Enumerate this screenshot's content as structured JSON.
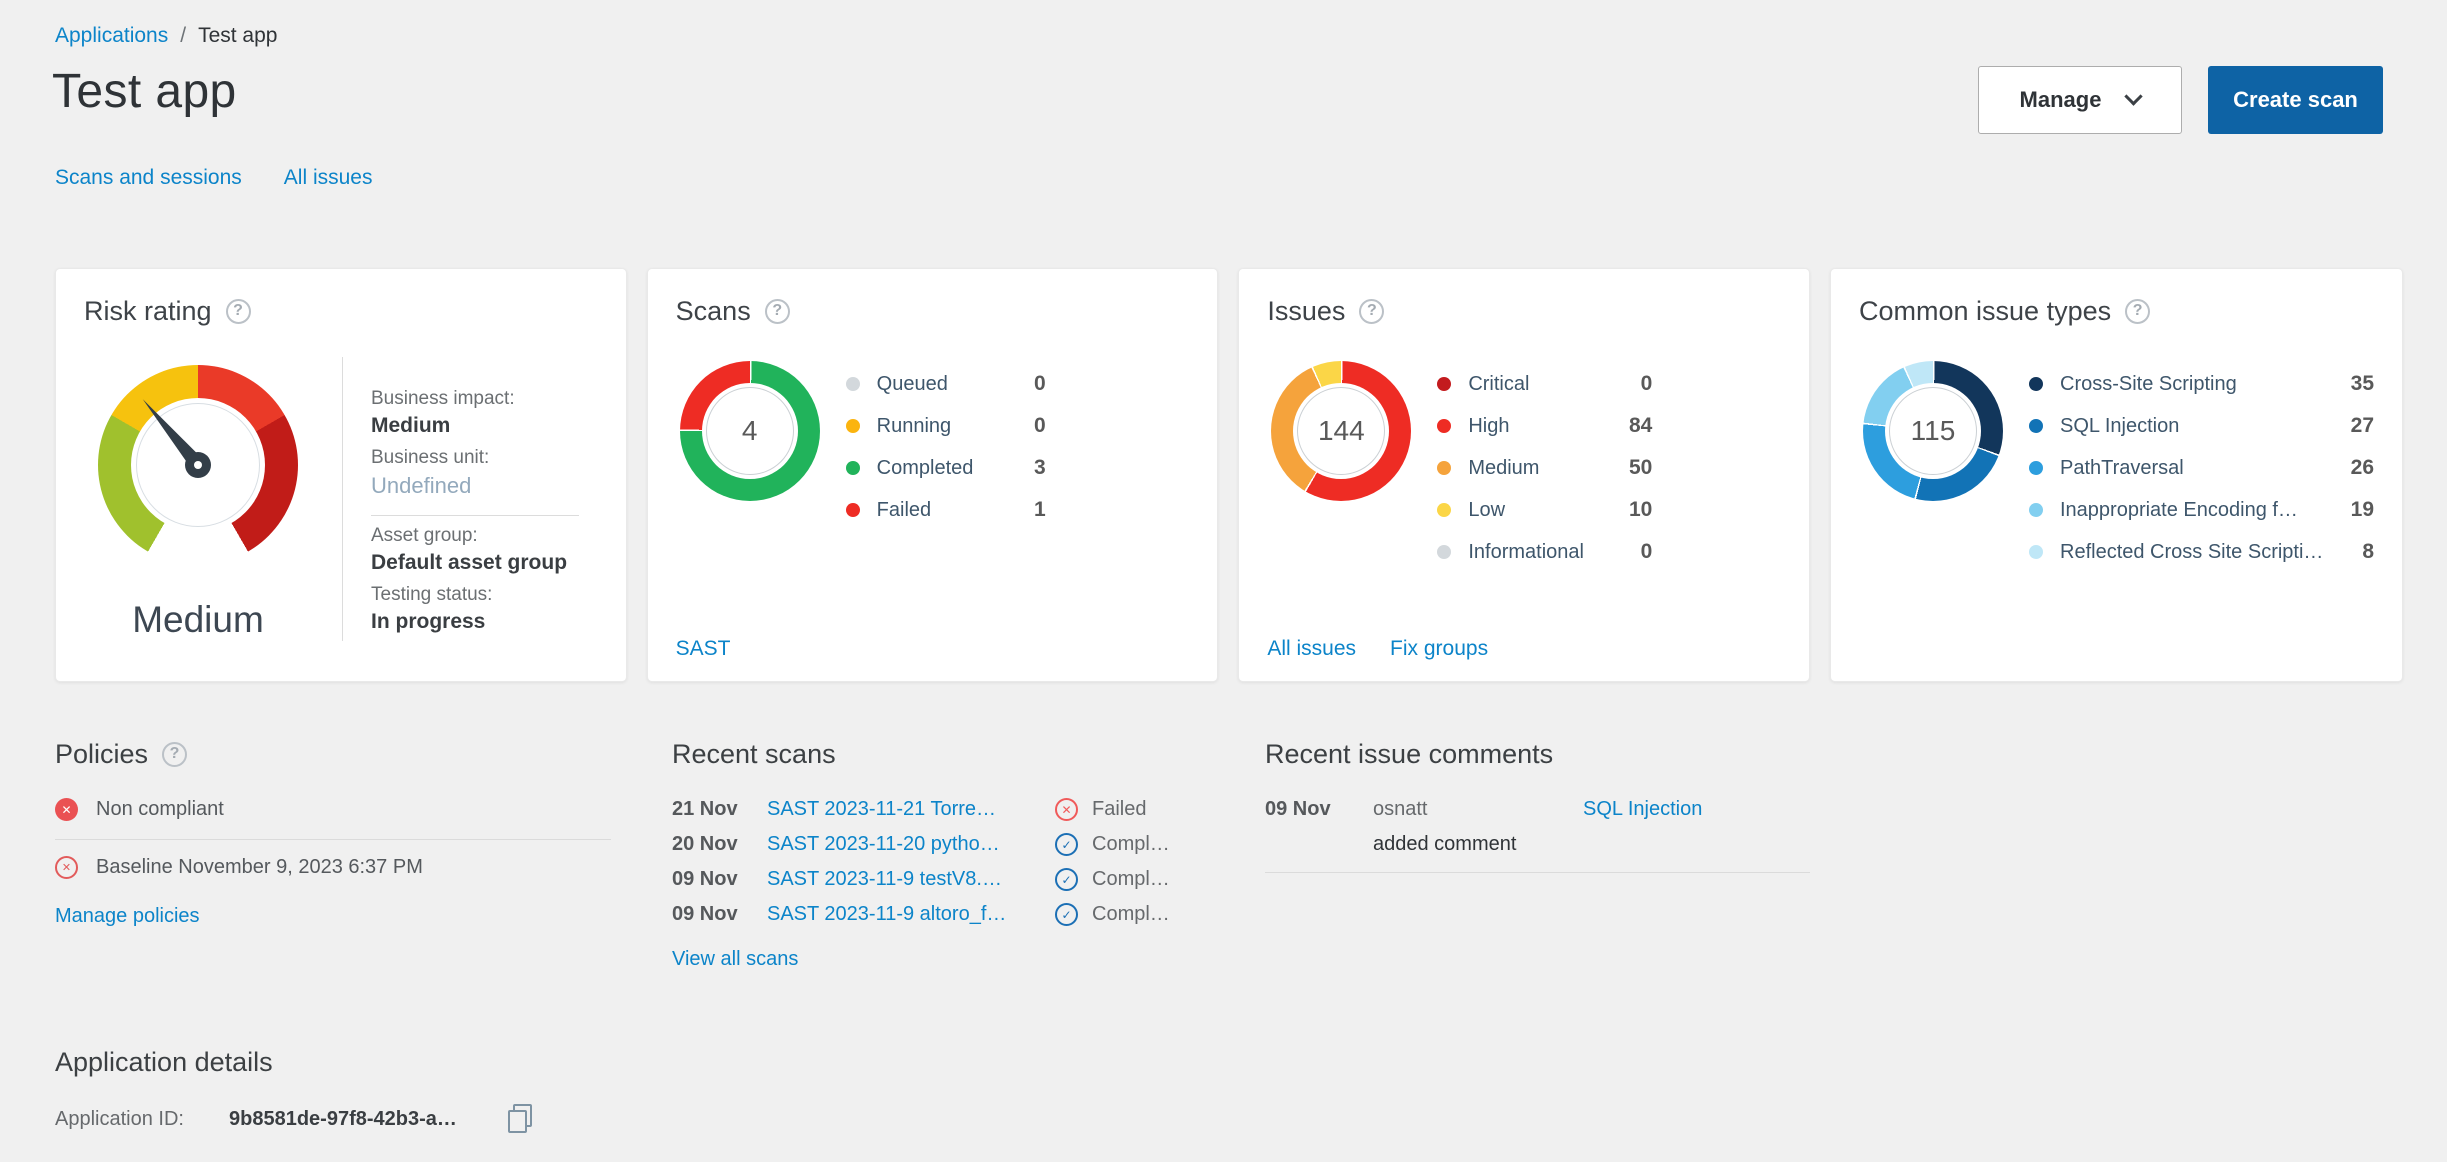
{
  "header": {
    "breadcrumb": {
      "link": "Applications",
      "separator": "/",
      "current": "Test app"
    },
    "title": "Test app",
    "tabs": [
      {
        "label": "Scans and sessions"
      },
      {
        "label": "All issues"
      }
    ],
    "manage_label": "Manage",
    "create_scan_label": "Create scan"
  },
  "risk_card": {
    "title": "Risk rating",
    "gauge": {
      "label": "Medium",
      "arcs": [
        {
          "name": "red",
          "color": "#EA3A28",
          "from": 0,
          "to": 60
        },
        {
          "name": "dark-red",
          "color": "#C11C18",
          "from": 60,
          "to": 150
        },
        {
          "name": "green",
          "color": "#A0C12D",
          "from": 210,
          "to": 300
        },
        {
          "name": "yellow",
          "color": "#F6C20E",
          "from": 300,
          "to": 360
        }
      ],
      "needle_angle_deg": -40
    },
    "details": [
      {
        "label": "Business impact:",
        "value": "Medium"
      },
      {
        "label": "Business unit:",
        "value": "Undefined"
      },
      {
        "label": "Asset group:",
        "value": "Default asset group"
      },
      {
        "label": "Testing status:",
        "value": "In progress"
      }
    ]
  },
  "scans_card": {
    "title": "Scans",
    "total": "4",
    "segments": [
      {
        "label": "Completed",
        "value": 3,
        "color": "#21B35B"
      },
      {
        "label": "Failed",
        "value": 1,
        "color": "#EE2C24"
      }
    ],
    "legend": [
      {
        "label": "Queued",
        "value": "0",
        "color": "#D3D8DC"
      },
      {
        "label": "Running",
        "value": "0",
        "color": "#FBB40F"
      },
      {
        "label": "Completed",
        "value": "3",
        "color": "#21B35B"
      },
      {
        "label": "Failed",
        "value": "1",
        "color": "#EE2C24"
      }
    ],
    "link": "SAST"
  },
  "issues_card": {
    "title": "Issues",
    "total": "144",
    "segments": [
      {
        "label": "High",
        "value": 84,
        "color": "#EE2C24"
      },
      {
        "label": "Medium",
        "value": 50,
        "color": "#F5A33C"
      },
      {
        "label": "Low",
        "value": 10,
        "color": "#FBD647"
      }
    ],
    "legend": [
      {
        "label": "Critical",
        "value": "0",
        "color": "#C31B1E"
      },
      {
        "label": "High",
        "value": "84",
        "color": "#EE2C24"
      },
      {
        "label": "Medium",
        "value": "50",
        "color": "#F5A33C"
      },
      {
        "label": "Low",
        "value": "10",
        "color": "#FBD647"
      },
      {
        "label": "Informational",
        "value": "0",
        "color": "#D3D8DC"
      }
    ],
    "links": [
      {
        "label": "All issues"
      },
      {
        "label": "Fix groups"
      }
    ]
  },
  "common_card": {
    "title": "Common issue types",
    "total": "115",
    "segments": [
      {
        "label": "Cross-Site Scripting",
        "value": 35,
        "color": "#12365B"
      },
      {
        "label": "SQL Injection",
        "value": 27,
        "color": "#1273B6"
      },
      {
        "label": "PathTraversal",
        "value": 26,
        "color": "#2D9EDE"
      },
      {
        "label": "Inappropriate Encoding f…",
        "value": 19,
        "color": "#82CFF0"
      },
      {
        "label": "Reflected Cross Site Scripti…",
        "value": 8,
        "color": "#BFE7F7"
      }
    ],
    "legend": [
      {
        "label": "Cross-Site Scripting",
        "value": "35",
        "color": "#12365B"
      },
      {
        "label": "SQL Injection",
        "value": "27",
        "color": "#1273B6"
      },
      {
        "label": "PathTraversal",
        "value": "26",
        "color": "#2D9EDE"
      },
      {
        "label": "Inappropriate Encoding f…",
        "value": "19",
        "color": "#82CFF0"
      },
      {
        "label": "Reflected Cross Site Scripti…",
        "value": "8",
        "color": "#BFE7F7"
      }
    ]
  },
  "policies": {
    "title": "Policies",
    "compliance": "Non compliant",
    "baseline": "Baseline November 9, 2023 6:37 PM",
    "link": "Manage policies"
  },
  "recent_scans": {
    "title": "Recent scans",
    "rows": [
      {
        "date": "21 Nov",
        "name": "SAST 2023-11-21 Torre…",
        "status": "Failed",
        "state": "failed"
      },
      {
        "date": "20 Nov",
        "name": "SAST 2023-11-20 pytho…",
        "status": "Compl…",
        "state": "completed"
      },
      {
        "date": "09 Nov",
        "name": "SAST 2023-11-9 testV8.…",
        "status": "Compl…",
        "state": "completed"
      },
      {
        "date": "09 Nov",
        "name": "SAST 2023-11-9 altoro_f…",
        "status": "Compl…",
        "state": "completed"
      }
    ],
    "link": "View all scans"
  },
  "recent_comments": {
    "title": "Recent issue comments",
    "rows": [
      {
        "date": "09 Nov",
        "user": "osnatt",
        "action": "added comment",
        "issue": "SQL Injection"
      }
    ]
  },
  "app_details": {
    "title": "Application details",
    "id_label": "Application ID:",
    "id_value": "9b8581de-97f8-42b3-a…"
  },
  "colors": {
    "page_bg": "#F0F0F0",
    "link": "#0C84C9",
    "primary_button": "#0E63A5",
    "failed_status": "#F05A5A",
    "completed_status": "#1B6FB5",
    "non_compliant": "#EA5153"
  }
}
